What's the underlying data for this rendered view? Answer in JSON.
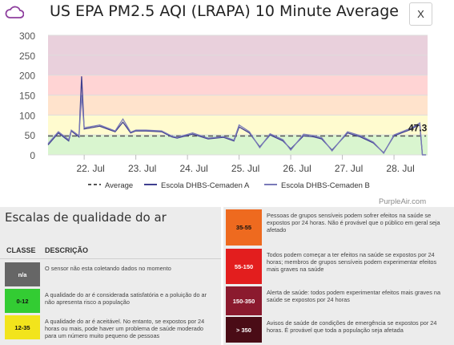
{
  "header": {
    "title": "US EPA PM2.5 AQI (LRAPA) 10 Minute Average",
    "close_label": "X"
  },
  "chart_data": {
    "type": "line",
    "ylim": [
      0,
      300
    ],
    "y_ticks": [
      "0",
      "50",
      "100",
      "150",
      "200",
      "250",
      "300"
    ],
    "x_ticks": [
      "22. Jul",
      "23. Jul",
      "24. Jul",
      "25. Jul",
      "26. Jul",
      "27. Jul",
      "28. Jul"
    ],
    "x": [
      21.3,
      21.5,
      21.7,
      21.75,
      21.9,
      21.95,
      22.0,
      22.3,
      22.6,
      22.75,
      22.9,
      23.0,
      23.2,
      23.5,
      23.7,
      23.8,
      24.1,
      24.4,
      24.7,
      24.9,
      25.0,
      25.2,
      25.4,
      25.6,
      25.85,
      26.0,
      26.25,
      26.45,
      26.6,
      26.8,
      27.1,
      27.35,
      27.6,
      27.8,
      28.0,
      28.25,
      28.35,
      28.4,
      28.5,
      28.55,
      28.62
    ],
    "series": [
      {
        "name": "Average",
        "style": "dashed",
        "color": "#555555",
        "values": [
          47.3,
          47.3,
          47.3,
          47.3,
          47.3,
          47.3,
          47.3,
          47.3,
          47.3,
          47.3,
          47.3,
          47.3,
          47.3,
          47.3,
          47.3,
          47.3,
          47.3,
          47.3,
          47.3,
          47.3,
          47.3,
          47.3,
          47.3,
          47.3,
          47.3,
          47.3,
          47.3,
          47.3,
          47.3,
          47.3,
          47.3,
          47.3,
          47.3,
          47.3,
          47.3,
          47.3,
          47.3,
          47.3,
          47.3,
          47.3,
          47.3
        ]
      },
      {
        "name": "Escola DHBS-Cemaden A",
        "color": "#3f3f8f",
        "values": [
          25,
          55,
          35,
          60,
          45,
          197,
          65,
          72,
          58,
          82,
          55,
          60,
          60,
          58,
          45,
          42,
          52,
          40,
          44,
          35,
          70,
          55,
          20,
          50,
          35,
          15,
          48,
          45,
          40,
          12,
          55,
          45,
          30,
          5,
          48,
          60,
          65,
          70,
          75,
          0,
          0
        ]
      },
      {
        "name": "Escola DHBS-Cemaden B",
        "color": "#7a7ab8",
        "values": [
          28,
          58,
          38,
          62,
          48,
          150,
          68,
          75,
          60,
          90,
          57,
          62,
          62,
          60,
          47,
          44,
          55,
          42,
          46,
          37,
          75,
          58,
          18,
          53,
          38,
          12,
          52,
          48,
          43,
          10,
          58,
          48,
          32,
          4,
          50,
          63,
          68,
          72,
          80,
          0,
          0
        ]
      }
    ],
    "bands": [
      {
        "from": 0,
        "to": 50,
        "color": "#d9f5cf"
      },
      {
        "from": 50,
        "to": 100,
        "color": "#fffbcf"
      },
      {
        "from": 100,
        "to": 150,
        "color": "#ffe3cc"
      },
      {
        "from": 150,
        "to": 200,
        "color": "#ffd4d4"
      },
      {
        "from": 200,
        "to": 300,
        "color": "#e9d0dc"
      }
    ],
    "annotation": "47.3",
    "legend_position": "bottom"
  },
  "credit": "PurpleAir.com",
  "scale": {
    "title": "Escalas de qualidade do ar",
    "col_class": "CLASSE",
    "col_desc": "DESCRIÇÃO",
    "rows": [
      {
        "label": "n/a",
        "color": "#666666",
        "text_color": "#ffffff",
        "desc": "O sensor não esta coletando dados no momento"
      },
      {
        "label": "0-12",
        "color": "#33cc33",
        "text_color": "#111111",
        "desc": "A qualidade do ar é considerada satisfatória e a poluição do ar não apresenta risco a população"
      },
      {
        "label": "12-35",
        "color": "#f2e41c",
        "text_color": "#111111",
        "desc": "A qualidade do ar é aceitável. No entanto, se expostos por 24 horas ou mais, pode haver um problema de saúde moderado para um número muito pequeno de pessoas"
      }
    ],
    "rows_right": [
      {
        "label": "35-55",
        "color": "#ee6a1f",
        "text_color": "#111111",
        "desc": "Pessoas de grupos sensíveis podem sofrer efeitos na saúde se expostos por 24 horas. Não é provável que o público em geral seja afetado"
      },
      {
        "label": "55-150",
        "color": "#e31e1e",
        "text_color": "#ffffff",
        "desc": "Todos podem começar a ter efeitos na saúde se expostos por 24 horas; membros de grupos sensíveis podem experimentar efeitos mais graves na saúde"
      },
      {
        "label": "150-350",
        "color": "#8b1a2e",
        "text_color": "#ffffff",
        "desc": "Alerta de saúde: todos podem experimentar efeitos mais graves na saúde se expostos por 24 horas"
      },
      {
        "label": "> 350",
        "color": "#4a0c16",
        "text_color": "#ffffff",
        "desc": "Avisos de saúde de condições de emergência se expostos por 24 horas. É provável que toda a população seja afetada"
      }
    ]
  }
}
